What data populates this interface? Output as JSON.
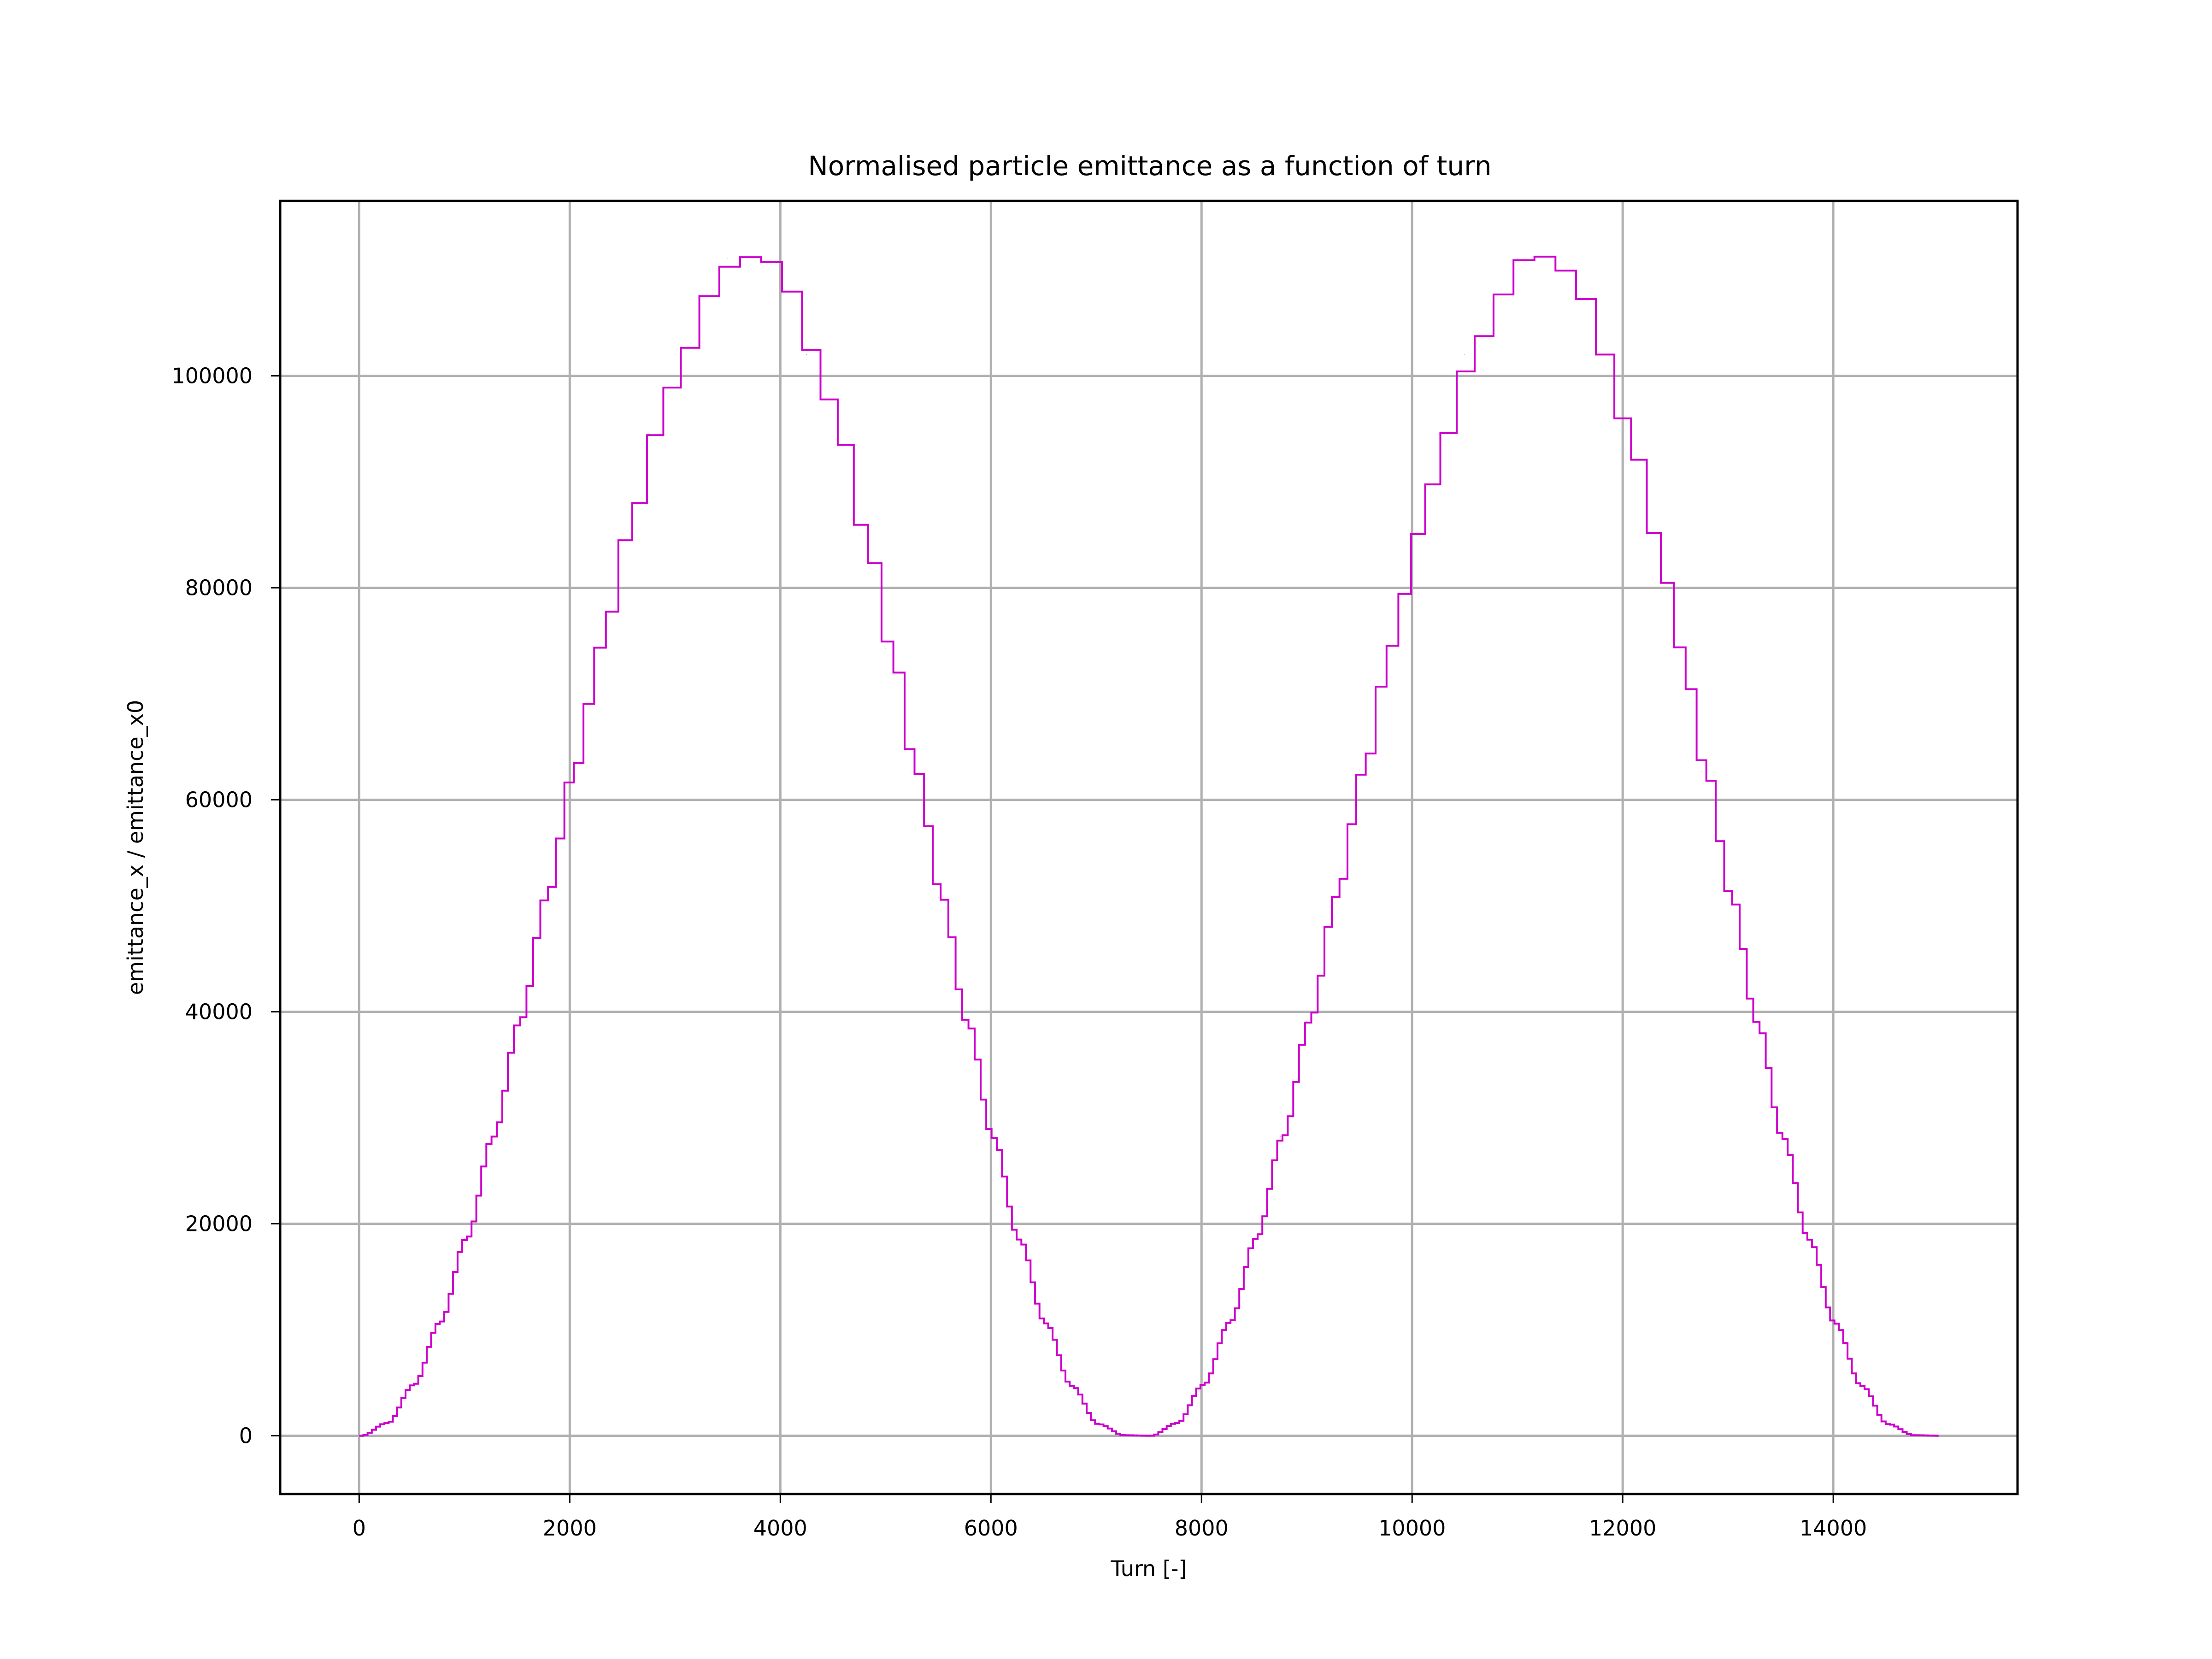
{
  "chart_data": {
    "type": "line",
    "title": "Normalised particle emittance as a function of turn",
    "xlabel": "Turn [-]",
    "ylabel": "emittance_x / emittance_x0",
    "xlim": [
      -750,
      15750
    ],
    "ylim": [
      -5500,
      116500
    ],
    "xticks": [
      0,
      2000,
      4000,
      6000,
      8000,
      10000,
      12000,
      14000
    ],
    "yticks": [
      0,
      20000,
      40000,
      60000,
      80000,
      100000
    ],
    "grid": true,
    "legend": "none",
    "series": [
      {
        "color": "#cc00cc",
        "drawstyle": "steps-post",
        "x": [
          0,
          250,
          500,
          750,
          1000,
          1250,
          1500,
          1750,
          2000,
          2250,
          2500,
          2750,
          3000,
          3250,
          3500,
          3750,
          4000,
          4250,
          4500,
          4750,
          5000,
          5250,
          5500,
          5750,
          6000,
          6250,
          6500,
          6750,
          7000,
          7250,
          7500,
          7750,
          8000,
          8250,
          8500,
          8750,
          9000,
          9250,
          9500,
          9750,
          10000,
          10250,
          10500,
          10750,
          11000,
          11250,
          11500,
          11750,
          12000,
          12250,
          12500,
          12750,
          13000,
          13250,
          13500,
          13750,
          14000,
          14250,
          14500,
          14750,
          15000
        ],
        "y": [
          0,
          1200,
          4800,
          10700,
          18600,
          28200,
          39100,
          50900,
          62800,
          74500,
          85100,
          94500,
          102000,
          107600,
          111100,
          111300,
          108000,
          102000,
          94200,
          85000,
          74300,
          62700,
          50800,
          39000,
          28100,
          18500,
          10600,
          4700,
          1100,
          50,
          0,
          1200,
          4800,
          10700,
          18600,
          28200,
          39100,
          50900,
          62800,
          74500,
          85100,
          94500,
          102000,
          107600,
          111100,
          111300,
          108000,
          102000,
          94200,
          85000,
          74300,
          62700,
          50800,
          39000,
          28100,
          18500,
          10600,
          4700,
          1100,
          50,
          0
        ]
      }
    ]
  }
}
